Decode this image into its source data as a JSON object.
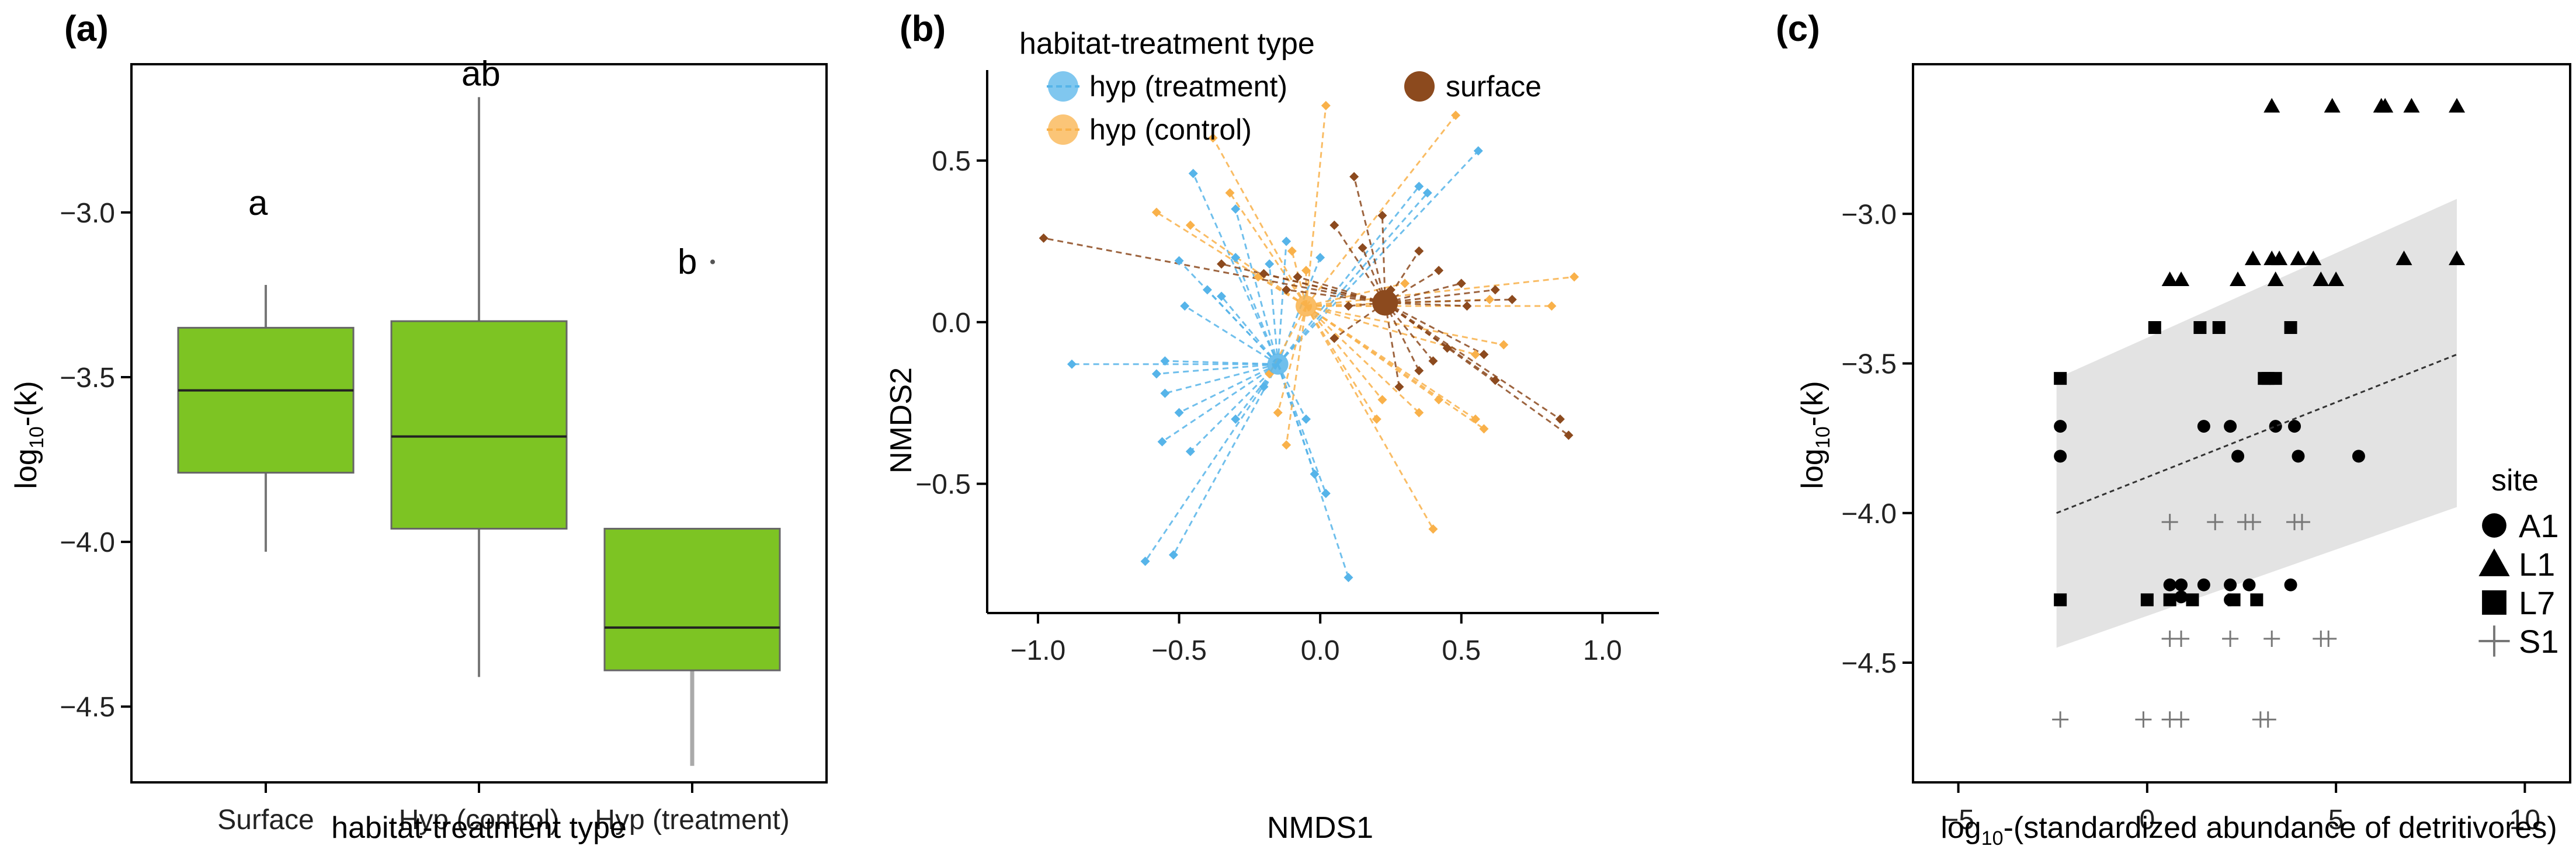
{
  "chart_data": [
    {
      "panel": "(a)",
      "type": "box",
      "xlabel": "habitat-treatment type",
      "ylabel_main": "log",
      "ylabel_sub": "10",
      "ylabel_suffix": "-(k)",
      "yticks": [
        -3.0,
        -3.5,
        -4.0,
        -4.5
      ],
      "ytick_labels": [
        "−3.0",
        "−3.5",
        "−4.0",
        "−4.5"
      ],
      "ylim": [
        -4.73,
        -2.55
      ],
      "categories": [
        "Surface",
        "Hyp (control)",
        "Hyp (treatment)"
      ],
      "boxes": [
        {
          "q1": -3.79,
          "median": -3.54,
          "q3": -3.35,
          "whisker_low": -4.03,
          "whisker_high": -3.22,
          "letter": "a",
          "outliers": []
        },
        {
          "q1": -3.96,
          "median": -3.68,
          "q3": -3.33,
          "whisker_low": -4.41,
          "whisker_high": -2.65,
          "letter": "ab",
          "outliers": []
        },
        {
          "q1": -4.39,
          "median": -4.26,
          "q3": -3.96,
          "whisker_low": -4.68,
          "whisker_high": -3.96,
          "letter": "b",
          "outliers": [
            -3.15
          ]
        }
      ],
      "box_color": "#7dc423"
    },
    {
      "panel": "(b)",
      "type": "scatter",
      "xlabel": "NMDS1",
      "ylabel": "NMDS2",
      "xlim": [
        -1.18,
        1.2
      ],
      "ylim": [
        -0.9,
        0.78
      ],
      "xticks": [
        -1.0,
        -0.5,
        0.0,
        0.5,
        1.0
      ],
      "xtick_labels": [
        "−1.0",
        "−0.5",
        "0.0",
        "0.5",
        "1.0"
      ],
      "yticks": [
        0.5,
        0.0,
        -0.5
      ],
      "ytick_labels": [
        "0.5",
        "0.0",
        "−0.5"
      ],
      "legend": {
        "title": "habitat-treatment type",
        "entries": [
          "hyp (treatment)",
          "hyp (control)",
          "surface"
        ]
      },
      "series": [
        {
          "name": "hyp (treatment)",
          "color": "#56b4e9",
          "centroid": [
            -0.15,
            -0.13
          ],
          "points": [
            [
              -0.88,
              -0.13
            ],
            [
              -0.58,
              -0.16
            ],
            [
              -0.55,
              -0.22
            ],
            [
              -0.5,
              -0.28
            ],
            [
              -0.56,
              -0.37
            ],
            [
              -0.62,
              -0.74
            ],
            [
              -0.52,
              -0.72
            ],
            [
              -0.46,
              -0.4
            ],
            [
              -0.3,
              -0.3
            ],
            [
              -0.2,
              -0.2
            ],
            [
              -0.05,
              -0.3
            ],
            [
              -0.02,
              -0.47
            ],
            [
              0.02,
              -0.53
            ],
            [
              0.1,
              -0.79
            ],
            [
              -0.55,
              -0.12
            ],
            [
              -0.48,
              0.05
            ],
            [
              -0.5,
              0.19
            ],
            [
              -0.4,
              0.1
            ],
            [
              -0.35,
              0.08
            ],
            [
              -0.3,
              0.2
            ],
            [
              -0.18,
              0.18
            ],
            [
              -0.45,
              0.46
            ],
            [
              -0.3,
              0.35
            ],
            [
              -0.12,
              0.25
            ],
            [
              0.0,
              0.2
            ],
            [
              0.35,
              0.42
            ],
            [
              0.38,
              0.4
            ],
            [
              0.56,
              0.53
            ]
          ]
        },
        {
          "name": "hyp (control)",
          "color": "#f9b14a",
          "centroid": [
            -0.05,
            0.05
          ],
          "points": [
            [
              -0.58,
              0.34
            ],
            [
              -0.46,
              0.3
            ],
            [
              -0.38,
              0.57
            ],
            [
              -0.32,
              0.4
            ],
            [
              -0.22,
              0.14
            ],
            [
              -0.1,
              0.22
            ],
            [
              -0.05,
              0.16
            ],
            [
              0.02,
              0.67
            ],
            [
              0.2,
              0.05
            ],
            [
              0.3,
              0.12
            ],
            [
              0.48,
              0.64
            ],
            [
              0.6,
              0.07
            ],
            [
              0.9,
              0.14
            ],
            [
              0.82,
              0.05
            ],
            [
              0.65,
              -0.07
            ],
            [
              0.55,
              -0.1
            ],
            [
              0.42,
              -0.24
            ],
            [
              0.35,
              -0.28
            ],
            [
              0.55,
              -0.3
            ],
            [
              0.58,
              -0.33
            ],
            [
              0.22,
              -0.24
            ],
            [
              0.2,
              -0.3
            ],
            [
              0.4,
              -0.64
            ],
            [
              -0.18,
              -0.16
            ],
            [
              -0.15,
              -0.28
            ],
            [
              -0.12,
              -0.38
            ]
          ]
        },
        {
          "name": "surface",
          "color": "#8c4a1e",
          "centroid": [
            0.23,
            0.06
          ],
          "points": [
            [
              -0.98,
              0.26
            ],
            [
              -0.35,
              0.18
            ],
            [
              -0.2,
              0.15
            ],
            [
              -0.12,
              0.1
            ],
            [
              -0.08,
              0.14
            ],
            [
              0.05,
              0.3
            ],
            [
              0.15,
              0.23
            ],
            [
              0.12,
              0.45
            ],
            [
              0.22,
              0.33
            ],
            [
              0.25,
              0.1
            ],
            [
              0.35,
              0.22
            ],
            [
              0.42,
              0.16
            ],
            [
              0.5,
              0.12
            ],
            [
              0.62,
              0.1
            ],
            [
              0.68,
              0.07
            ],
            [
              0.52,
              0.05
            ],
            [
              0.45,
              -0.08
            ],
            [
              0.58,
              -0.1
            ],
            [
              0.62,
              -0.18
            ],
            [
              0.85,
              -0.3
            ],
            [
              0.88,
              -0.35
            ],
            [
              0.35,
              -0.15
            ],
            [
              0.4,
              -0.12
            ],
            [
              0.28,
              -0.2
            ],
            [
              0.05,
              -0.05
            ],
            [
              0.1,
              0.05
            ]
          ]
        }
      ]
    },
    {
      "panel": "(c)",
      "type": "scatter",
      "xlabel_main": "log",
      "xlabel_sub": "10",
      "xlabel_suffix": "-(standardized abundance of detritivores)",
      "ylabel_main": "log",
      "ylabel_sub": "10",
      "ylabel_suffix": "-(k)",
      "xlim": [
        -6.2,
        11.2
      ],
      "ylim": [
        -4.9,
        -2.5
      ],
      "xticks": [
        -5,
        0,
        5,
        10
      ],
      "xtick_labels": [
        "−5",
        "0",
        "5",
        "10"
      ],
      "yticks": [
        -3.0,
        -3.5,
        -4.0,
        -4.5
      ],
      "ytick_labels": [
        "−3.0",
        "−3.5",
        "−4.0",
        "−4.5"
      ],
      "trend": {
        "x": [
          -2.4,
          8.2
        ],
        "y": [
          -4.0,
          -3.47
        ],
        "ci_low": [
          -4.45,
          -3.98
        ],
        "ci_high": [
          -3.55,
          -2.95
        ]
      },
      "legend": {
        "title": "site",
        "entries": [
          "A1",
          "L1",
          "L7",
          "S1"
        ]
      },
      "series": [
        {
          "name": "A1",
          "marker": "circle",
          "points": [
            [
              -2.3,
              -3.71
            ],
            [
              -2.3,
              -3.81
            ],
            [
              0.6,
              -4.24
            ],
            [
              0.9,
              -4.24
            ],
            [
              1.5,
              -4.24
            ],
            [
              2.2,
              -4.24
            ],
            [
              2.7,
              -4.24
            ],
            [
              3.8,
              -4.24
            ],
            [
              0.9,
              -4.28
            ],
            [
              2.2,
              -4.29
            ],
            [
              1.5,
              -3.71
            ],
            [
              2.2,
              -3.71
            ],
            [
              2.4,
              -3.81
            ],
            [
              3.4,
              -3.71
            ],
            [
              3.9,
              -3.71
            ],
            [
              4.0,
              -3.81
            ],
            [
              5.6,
              -3.81
            ]
          ]
        },
        {
          "name": "L1",
          "marker": "triangle",
          "points": [
            [
              3.3,
              -2.64
            ],
            [
              4.9,
              -2.64
            ],
            [
              6.2,
              -2.64
            ],
            [
              6.3,
              -2.64
            ],
            [
              7.0,
              -2.64
            ],
            [
              8.2,
              -2.64
            ],
            [
              2.8,
              -3.15
            ],
            [
              3.3,
              -3.15
            ],
            [
              3.5,
              -3.15
            ],
            [
              4.0,
              -3.15
            ],
            [
              4.4,
              -3.15
            ],
            [
              6.8,
              -3.15
            ],
            [
              8.2,
              -3.15
            ],
            [
              0.6,
              -3.22
            ],
            [
              0.9,
              -3.22
            ],
            [
              2.4,
              -3.22
            ],
            [
              3.4,
              -3.22
            ],
            [
              4.6,
              -3.22
            ],
            [
              5.0,
              -3.22
            ]
          ]
        },
        {
          "name": "L7",
          "marker": "square",
          "points": [
            [
              -2.3,
              -3.55
            ],
            [
              0.2,
              -3.38
            ],
            [
              1.4,
              -3.38
            ],
            [
              1.9,
              -3.38
            ],
            [
              3.1,
              -3.55
            ],
            [
              3.4,
              -3.55
            ],
            [
              3.8,
              -3.38
            ],
            [
              -2.3,
              -4.29
            ],
            [
              0.0,
              -4.29
            ],
            [
              0.6,
              -4.29
            ],
            [
              1.2,
              -4.29
            ],
            [
              2.3,
              -4.29
            ],
            [
              2.9,
              -4.29
            ],
            [
              3.2,
              -3.55
            ]
          ]
        },
        {
          "name": "S1",
          "marker": "cross",
          "points": [
            [
              0.6,
              -4.03
            ],
            [
              1.8,
              -4.03
            ],
            [
              2.6,
              -4.03
            ],
            [
              2.8,
              -4.03
            ],
            [
              3.9,
              -4.03
            ],
            [
              4.1,
              -4.03
            ],
            [
              0.6,
              -4.42
            ],
            [
              0.9,
              -4.42
            ],
            [
              2.2,
              -4.42
            ],
            [
              3.3,
              -4.42
            ],
            [
              4.6,
              -4.42
            ],
            [
              4.8,
              -4.42
            ],
            [
              -2.3,
              -4.69
            ],
            [
              -0.1,
              -4.69
            ],
            [
              0.6,
              -4.69
            ],
            [
              0.9,
              -4.69
            ],
            [
              3.0,
              -4.69
            ],
            [
              3.2,
              -4.69
            ]
          ]
        }
      ]
    }
  ]
}
